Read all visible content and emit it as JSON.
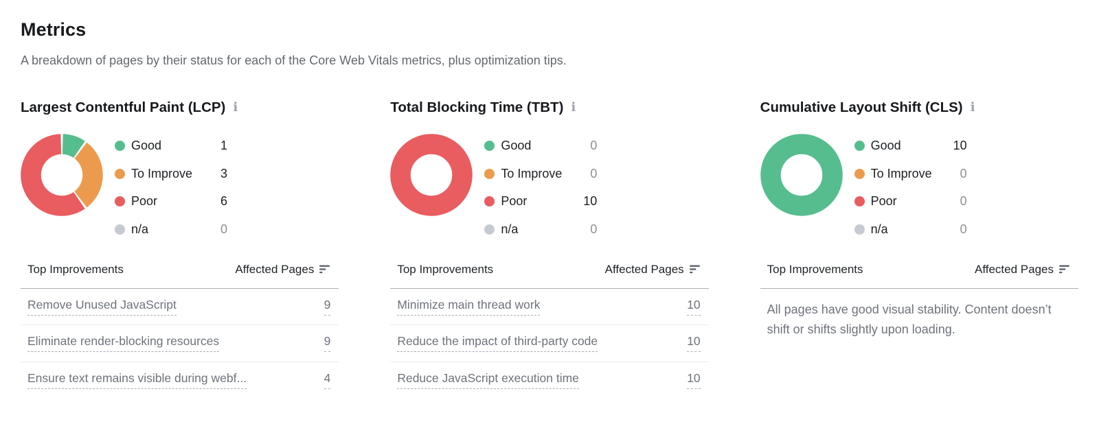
{
  "page": {
    "title": "Metrics",
    "subtitle": "A breakdown of pages by their status for each of the Core Web Vitals metrics, plus optimization tips."
  },
  "icons": {
    "info": "ℹ"
  },
  "colors": {
    "good": "#56bd8f",
    "to_improve": "#ec9b4e",
    "poor": "#e95c5f",
    "na": "#c6cad2",
    "sort_icon": "#5c626b"
  },
  "table_header": {
    "improvements": "Top Improvements",
    "affected": "Affected Pages"
  },
  "sections": [
    {
      "id": "lcp",
      "title": "Largest Contentful Paint (LCP)",
      "legend": [
        {
          "label": "Good",
          "value": 1,
          "status": "good"
        },
        {
          "label": "To Improve",
          "value": 3,
          "status": "to_improve"
        },
        {
          "label": "Poor",
          "value": 6,
          "status": "poor"
        },
        {
          "label": "n/a",
          "value": 0,
          "status": "na"
        }
      ],
      "improvements": [
        {
          "label": "Remove Unused JavaScript",
          "pages": 9
        },
        {
          "label": "Eliminate render-blocking resources",
          "pages": 9
        },
        {
          "label": "Ensure text remains visible during webf...",
          "pages": 4
        }
      ]
    },
    {
      "id": "tbt",
      "title": "Total Blocking Time (TBT)",
      "legend": [
        {
          "label": "Good",
          "value": 0,
          "status": "good"
        },
        {
          "label": "To Improve",
          "value": 0,
          "status": "to_improve"
        },
        {
          "label": "Poor",
          "value": 10,
          "status": "poor"
        },
        {
          "label": "n/a",
          "value": 0,
          "status": "na"
        }
      ],
      "improvements": [
        {
          "label": "Minimize main thread work",
          "pages": 10
        },
        {
          "label": "Reduce the impact of third-party code",
          "pages": 10
        },
        {
          "label": "Reduce JavaScript execution time",
          "pages": 10
        }
      ]
    },
    {
      "id": "cls",
      "title": "Cumulative Layout Shift (CLS)",
      "legend": [
        {
          "label": "Good",
          "value": 10,
          "status": "good"
        },
        {
          "label": "To Improve",
          "value": 0,
          "status": "to_improve"
        },
        {
          "label": "Poor",
          "value": 0,
          "status": "poor"
        },
        {
          "label": "n/a",
          "value": 0,
          "status": "na"
        }
      ],
      "improvements": [],
      "message": "All pages have good visual stability. Content doesn’t shift or shifts slightly upon loading."
    }
  ],
  "chart_data": [
    {
      "type": "pie",
      "variant": "donut",
      "title": "Largest Contentful Paint (LCP)",
      "categories": [
        "Good",
        "To Improve",
        "Poor",
        "n/a"
      ],
      "values": [
        1,
        3,
        6,
        0
      ],
      "colors": [
        "#56bd8f",
        "#ec9b4e",
        "#e95c5f",
        "#c6cad2"
      ],
      "legend_position": "right"
    },
    {
      "type": "pie",
      "variant": "donut",
      "title": "Total Blocking Time (TBT)",
      "categories": [
        "Good",
        "To Improve",
        "Poor",
        "n/a"
      ],
      "values": [
        0,
        0,
        10,
        0
      ],
      "colors": [
        "#56bd8f",
        "#ec9b4e",
        "#e95c5f",
        "#c6cad2"
      ],
      "legend_position": "right"
    },
    {
      "type": "pie",
      "variant": "donut",
      "title": "Cumulative Layout Shift (CLS)",
      "categories": [
        "Good",
        "To Improve",
        "Poor",
        "n/a"
      ],
      "values": [
        10,
        0,
        0,
        0
      ],
      "colors": [
        "#56bd8f",
        "#ec9b4e",
        "#e95c5f",
        "#c6cad2"
      ],
      "legend_position": "right"
    }
  ]
}
